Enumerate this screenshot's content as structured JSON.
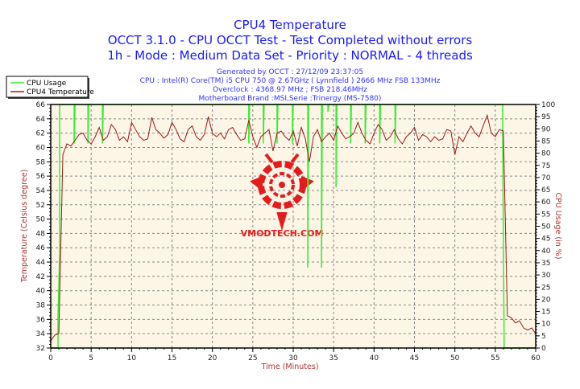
{
  "header": {
    "title": "CPU4 Temperature",
    "subtitle1": "OCCT 3.1.0 - CPU OCCT Test - Test Completed without errors",
    "subtitle2": "1h - Mode : Medium Data Set - Priority : NORMAL - 4 threads",
    "info": [
      "Generated by OCCT : 27/12/09 23:37:05",
      "CPU : Intel(R) Core(TM) i5 CPU 750 @ 2.67GHz ( Lynnfield ) 2666 MHz FSB 133MHz",
      "Overclock : 4368.97 MHz ; FSB 218.46MHz",
      "Motherboard Brand :MSI,Serie :Trinergy (MS-7580)"
    ]
  },
  "watermark": "VMODTECH.COM",
  "colors": {
    "usage": "#33ee33",
    "temperature": "#a01818",
    "plot_bg": "#fdf6e6",
    "title": "#1a1aff",
    "axis_label": "#b03030"
  },
  "chart_data": {
    "type": "line",
    "xlabel": "Time (Minutes)",
    "ylabel": "Temperature (Celsius degree)",
    "y2label": "CPU Usage (in %)",
    "xlim": [
      0,
      60
    ],
    "ylim": [
      32,
      66
    ],
    "y2lim": [
      0,
      100
    ],
    "xticks": [
      0,
      5,
      10,
      15,
      20,
      25,
      30,
      35,
      40,
      45,
      50,
      55,
      60
    ],
    "yticks": [
      32,
      34,
      36,
      38,
      40,
      42,
      44,
      46,
      48,
      50,
      52,
      54,
      56,
      58,
      60,
      62,
      64,
      66
    ],
    "y2ticks": [
      0,
      5,
      10,
      15,
      20,
      25,
      30,
      35,
      40,
      45,
      50,
      55,
      60,
      65,
      70,
      75,
      80,
      85,
      90,
      95,
      100
    ],
    "grid": true,
    "legend": "top-left",
    "series": [
      {
        "name": "CPU Usage",
        "axis": "right",
        "points": [
          [
            0,
            0
          ],
          [
            0.9,
            0
          ],
          [
            0.9,
            12
          ],
          [
            1.1,
            40
          ],
          [
            1.1,
            100
          ],
          [
            2.9,
            100
          ],
          [
            2.9,
            84
          ],
          [
            3.0,
            100
          ],
          [
            4.6,
            100
          ],
          [
            4.6,
            84
          ],
          [
            4.7,
            100
          ],
          [
            6.4,
            100
          ],
          [
            6.4,
            84
          ],
          [
            6.5,
            100
          ],
          [
            24.5,
            100
          ],
          [
            24.5,
            84
          ],
          [
            24.6,
            100
          ],
          [
            26.3,
            100
          ],
          [
            26.3,
            84
          ],
          [
            26.4,
            100
          ],
          [
            28.0,
            100
          ],
          [
            28.0,
            84
          ],
          [
            28.1,
            100
          ],
          [
            29.9,
            100
          ],
          [
            29.9,
            84
          ],
          [
            30.0,
            100
          ],
          [
            31.8,
            100
          ],
          [
            31.8,
            33
          ],
          [
            31.9,
            100
          ],
          [
            33.5,
            100
          ],
          [
            33.5,
            33
          ],
          [
            33.6,
            100
          ],
          [
            34.3,
            100
          ],
          [
            34.3,
            97
          ],
          [
            34.4,
            100
          ],
          [
            35.3,
            100
          ],
          [
            35.3,
            66
          ],
          [
            35.4,
            100
          ],
          [
            37.1,
            100
          ],
          [
            37.1,
            84
          ],
          [
            37.2,
            100
          ],
          [
            38.9,
            100
          ],
          [
            38.9,
            84
          ],
          [
            39.0,
            100
          ],
          [
            40.7,
            100
          ],
          [
            40.7,
            84
          ],
          [
            40.8,
            100
          ],
          [
            42.6,
            100
          ],
          [
            42.6,
            84
          ],
          [
            42.7,
            100
          ],
          [
            55.9,
            100
          ],
          [
            56.0,
            45
          ],
          [
            56.1,
            0
          ],
          [
            60,
            0
          ]
        ]
      },
      {
        "name": "CPU4 Temperature",
        "axis": "left",
        "x_step": 0.5,
        "values": [
          33,
          33.8,
          34,
          59,
          60.5,
          60.2,
          61,
          61.8,
          62,
          61,
          60.5,
          61.5,
          62.8,
          61,
          61.5,
          63.2,
          62.5,
          61,
          61.5,
          60.8,
          63.5,
          62.5,
          61.5,
          61,
          61.2,
          64.2,
          62.5,
          62,
          61.3,
          61.8,
          63.5,
          62.5,
          61.2,
          60.8,
          62.5,
          63,
          61.5,
          61,
          61.8,
          64.3,
          62,
          61.5,
          62,
          61.2,
          62.5,
          62.8,
          61.8,
          61,
          61.2,
          63.8,
          61.5,
          60,
          61.5,
          62,
          62.5,
          59.5,
          62,
          62.3,
          61.5,
          61,
          62.3,
          60.2,
          62.8,
          61.2,
          58,
          61.5,
          62.5,
          60.8,
          61.5,
          62,
          61,
          63,
          62,
          61.2,
          61.5,
          62,
          63.5,
          62,
          61,
          60.5,
          62,
          63.2,
          62.5,
          61,
          61.5,
          62.5,
          61.2,
          60.5,
          61.5,
          62,
          62.8,
          61,
          61.8,
          61.5,
          60.8,
          61.5,
          61,
          61.2,
          62.5,
          62.3,
          59,
          61.5,
          60.8,
          62,
          63,
          62,
          61.5,
          63,
          64.5,
          62,
          61.5,
          62.5,
          62.3,
          36.5,
          36.2,
          35.5,
          35.8,
          34.8,
          34.5,
          34.8,
          34
        ]
      }
    ]
  }
}
